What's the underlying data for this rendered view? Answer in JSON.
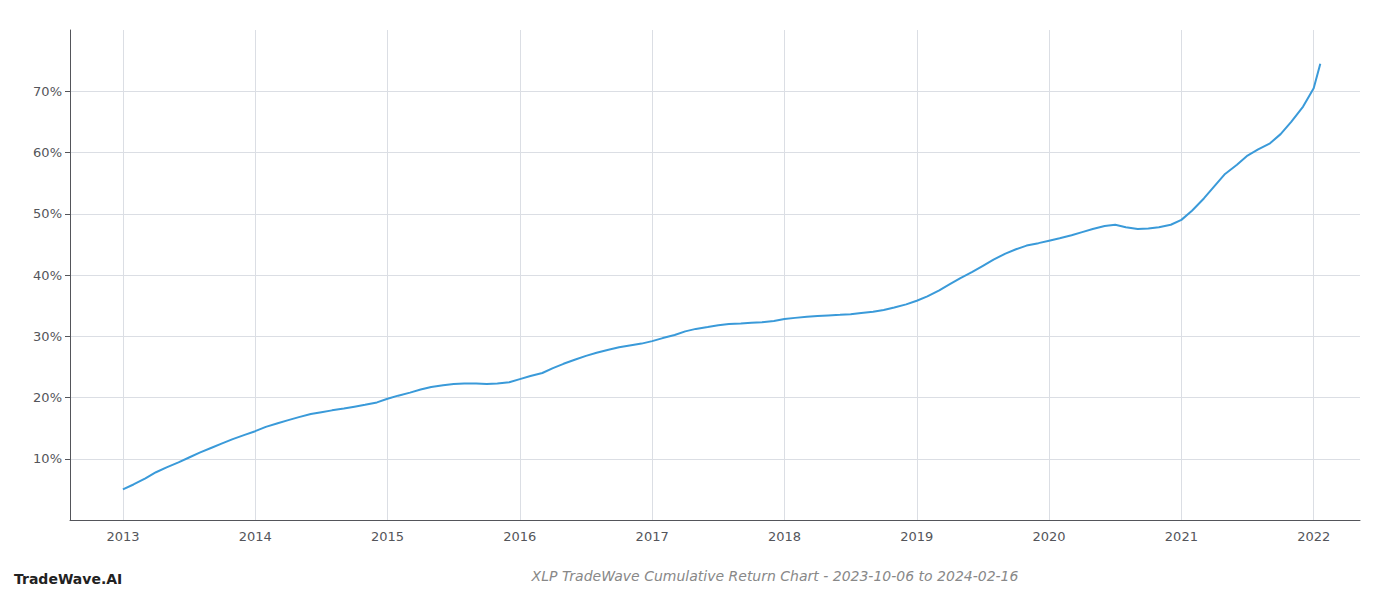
{
  "chart_data": {
    "type": "line",
    "title": "XLP TradeWave Cumulative Return Chart - 2023-10-06 to 2024-02-16",
    "annotations": [
      "TradeWave.AI"
    ],
    "color": "#3a9ad9",
    "x": [
      2013.0,
      2013.08,
      2013.17,
      2013.25,
      2013.33,
      2013.42,
      2013.5,
      2013.58,
      2013.67,
      2013.75,
      2013.83,
      2013.92,
      2014.0,
      2014.08,
      2014.17,
      2014.25,
      2014.33,
      2014.42,
      2014.5,
      2014.58,
      2014.67,
      2014.75,
      2014.83,
      2014.92,
      2015.0,
      2015.08,
      2015.17,
      2015.25,
      2015.33,
      2015.42,
      2015.5,
      2015.58,
      2015.67,
      2015.75,
      2015.83,
      2015.92,
      2016.0,
      2016.08,
      2016.17,
      2016.25,
      2016.33,
      2016.42,
      2016.5,
      2016.58,
      2016.67,
      2016.75,
      2016.83,
      2016.92,
      2017.0,
      2017.08,
      2017.17,
      2017.25,
      2017.33,
      2017.42,
      2017.5,
      2017.58,
      2017.67,
      2017.75,
      2017.83,
      2017.92,
      2018.0,
      2018.08,
      2018.17,
      2018.25,
      2018.33,
      2018.42,
      2018.5,
      2018.58,
      2018.67,
      2018.75,
      2018.83,
      2018.92,
      2019.0,
      2019.08,
      2019.17,
      2019.25,
      2019.33,
      2019.42,
      2019.5,
      2019.58,
      2019.67,
      2019.75,
      2019.83,
      2019.92,
      2020.0,
      2020.08,
      2020.17,
      2020.25,
      2020.33,
      2020.42,
      2020.5,
      2020.58,
      2020.67,
      2020.75,
      2020.83,
      2020.92,
      2021.0,
      2021.08,
      2021.17,
      2021.25,
      2021.33,
      2021.42,
      2021.5,
      2021.58,
      2021.67,
      2021.75,
      2021.83,
      2021.92,
      2022.0,
      2022.05
    ],
    "values": [
      5.0,
      5.8,
      6.8,
      7.8,
      8.6,
      9.4,
      10.2,
      11.0,
      11.8,
      12.5,
      13.2,
      13.9,
      14.5,
      15.2,
      15.8,
      16.3,
      16.8,
      17.3,
      17.6,
      17.9,
      18.2,
      18.5,
      18.8,
      19.2,
      19.8,
      20.3,
      20.8,
      21.3,
      21.7,
      22.0,
      22.2,
      22.3,
      22.3,
      22.2,
      22.3,
      22.5,
      23.0,
      23.5,
      24.0,
      24.8,
      25.5,
      26.2,
      26.8,
      27.3,
      27.8,
      28.2,
      28.5,
      28.8,
      29.2,
      29.7,
      30.2,
      30.8,
      31.2,
      31.5,
      31.8,
      32.0,
      32.1,
      32.2,
      32.3,
      32.5,
      32.8,
      33.0,
      33.2,
      33.3,
      33.4,
      33.5,
      33.6,
      33.8,
      34.0,
      34.3,
      34.7,
      35.2,
      35.8,
      36.5,
      37.5,
      38.5,
      39.5,
      40.5,
      41.5,
      42.5,
      43.5,
      44.2,
      44.8,
      45.2,
      45.6,
      46.0,
      46.5,
      47.0,
      47.5,
      48.0,
      48.2,
      47.8,
      47.5,
      47.6,
      47.8,
      48.2,
      49.0,
      50.5,
      52.5,
      54.5,
      56.5,
      58.0,
      59.5,
      60.5,
      61.5,
      63.0,
      65.0,
      67.5,
      70.5,
      74.5
    ],
    "xlim": [
      2012.6,
      2022.35
    ],
    "ylim": [
      0,
      80
    ],
    "xticks": [
      2013,
      2014,
      2015,
      2016,
      2017,
      2018,
      2019,
      2020,
      2021,
      2022
    ],
    "yticks": [
      {
        "value": 10,
        "label": "10%"
      },
      {
        "value": 20,
        "label": "20%"
      },
      {
        "value": 30,
        "label": "30%"
      },
      {
        "value": 40,
        "label": "40%"
      },
      {
        "value": 50,
        "label": "50%"
      },
      {
        "value": 60,
        "label": "60%"
      },
      {
        "value": 70,
        "label": "70%"
      }
    ],
    "grid": true
  }
}
